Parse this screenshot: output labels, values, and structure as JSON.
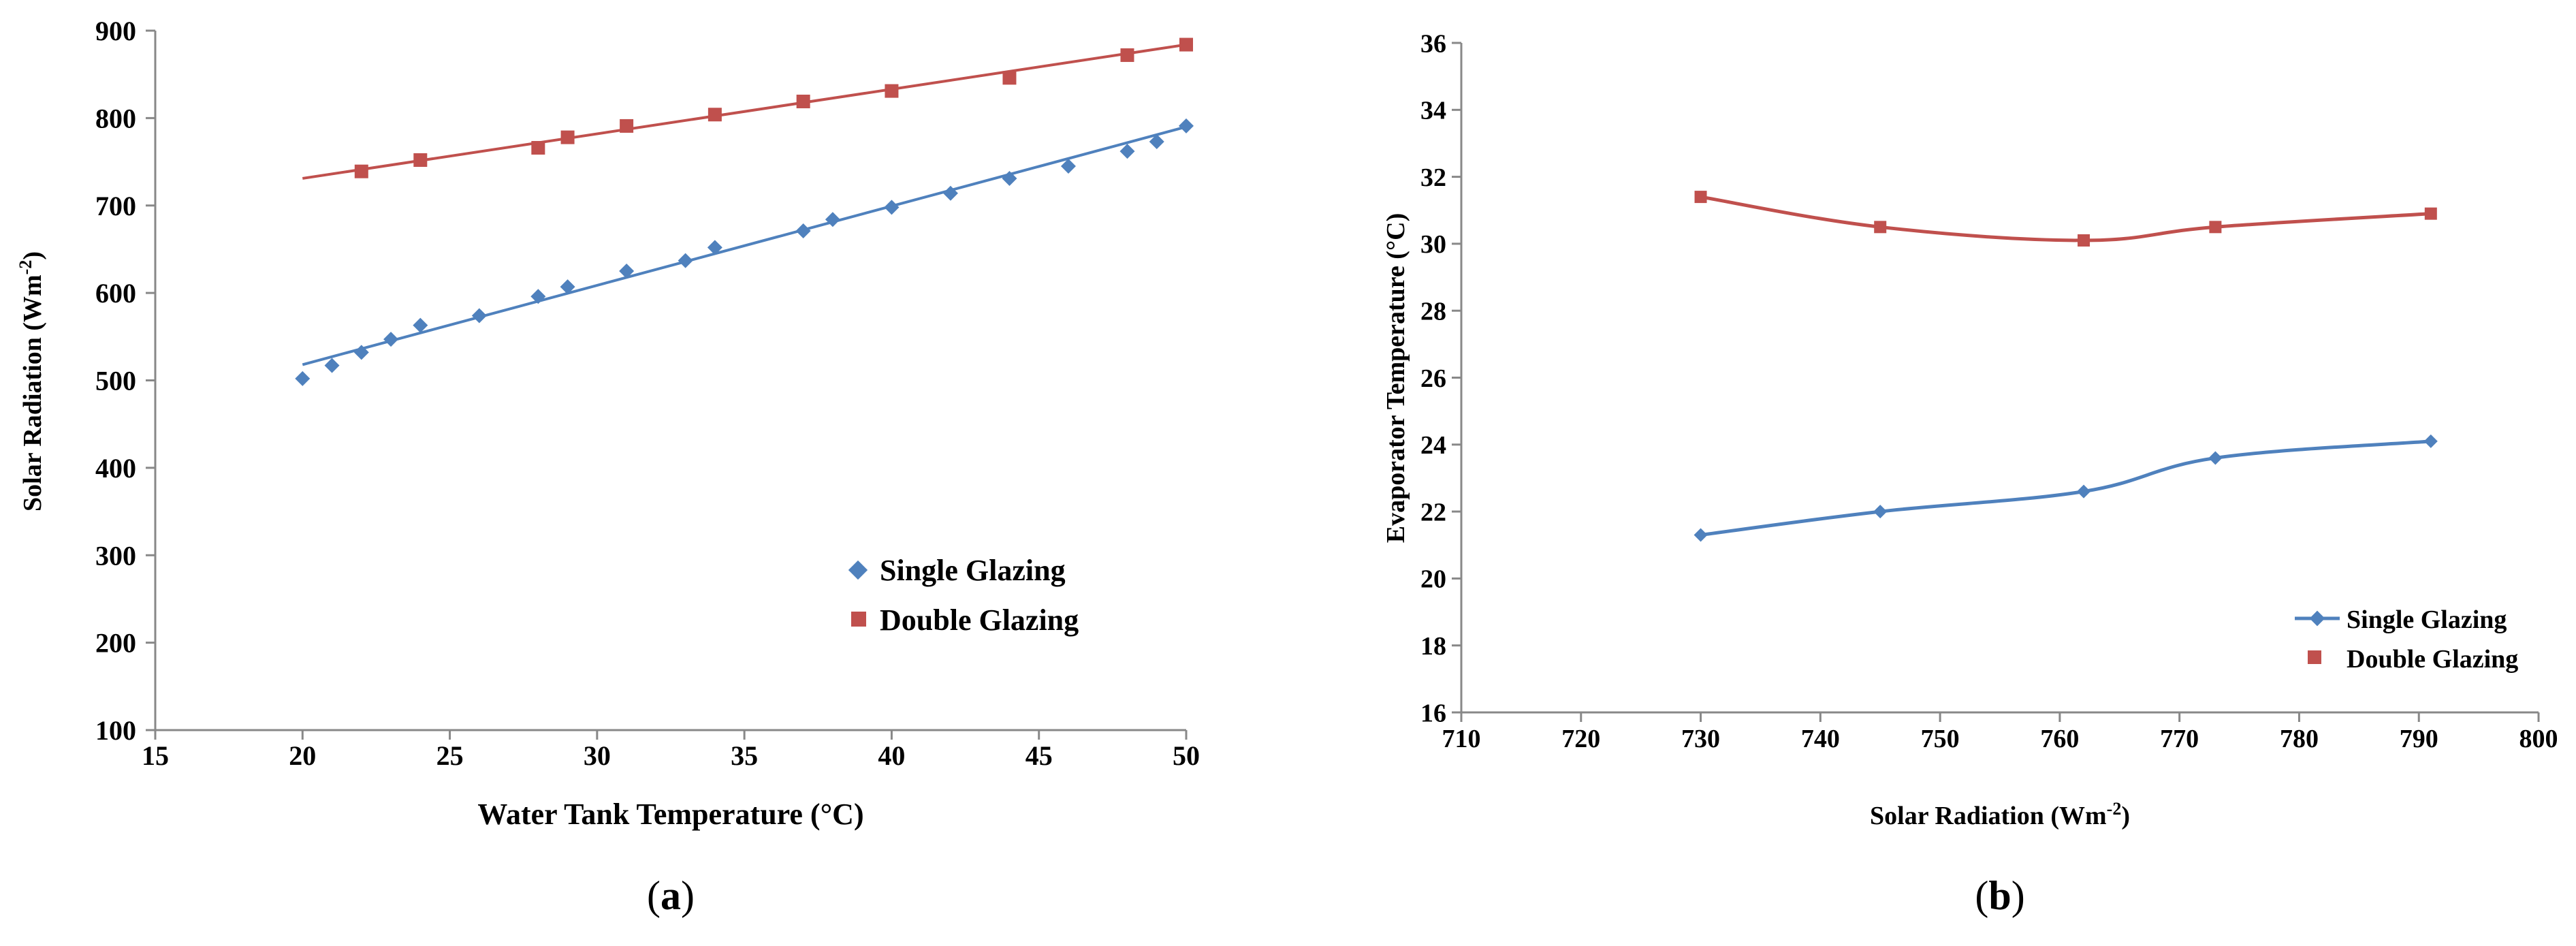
{
  "colors": {
    "single": "#4f81bd",
    "double": "#c0504d",
    "axis": "#888888",
    "text": "#000000"
  },
  "captions": {
    "a_open": "(",
    "a_letter": "a",
    "a_close": ")",
    "b_open": "(",
    "b_letter": "b",
    "b_close": ")"
  },
  "chart_data": [
    {
      "id": "a",
      "type": "scatter",
      "xlabel": "Water Tank Temperature (°C)",
      "ylabel_main": "Solar Radiation (Wm",
      "ylabel_sup": "-2",
      "ylabel_end": ")",
      "xlim": [
        15,
        50
      ],
      "ylim": [
        100,
        900
      ],
      "xticks": [
        15,
        20,
        25,
        30,
        35,
        40,
        45,
        50
      ],
      "yticks": [
        100,
        200,
        300,
        400,
        500,
        600,
        700,
        800,
        900
      ],
      "legend": [
        "Single Glazing",
        "Double Glazing"
      ],
      "legend_position": "bottom-right",
      "series": [
        {
          "name": "Single Glazing",
          "marker": "diamond",
          "x": [
            20,
            21,
            22,
            23,
            24,
            26,
            28,
            29,
            31,
            33,
            34,
            37,
            38,
            40,
            42,
            44,
            46,
            48,
            49,
            50
          ],
          "y": [
            502,
            517,
            532,
            547,
            563,
            574,
            596,
            607,
            625,
            637,
            652,
            671,
            684,
            698,
            714,
            731,
            745,
            762,
            773,
            791
          ],
          "trendline": [
            [
              20,
              518
            ],
            [
              50,
              790
            ]
          ]
        },
        {
          "name": "Double Glazing",
          "marker": "square",
          "x": [
            22,
            24,
            28,
            29,
            31,
            34,
            37,
            40,
            44,
            48,
            50
          ],
          "y": [
            739,
            752,
            766,
            778,
            791,
            804,
            819,
            831,
            846,
            872,
            884
          ],
          "trendline": [
            [
              20,
              731
            ],
            [
              50,
              884
            ]
          ]
        }
      ]
    },
    {
      "id": "b",
      "type": "line",
      "xlabel_main": "Solar Radiation (Wm",
      "xlabel_sup": "-2",
      "xlabel_end": ")",
      "ylabel": "Evaporator  Temperature (°C)",
      "xlim": [
        710,
        800
      ],
      "ylim": [
        16,
        36
      ],
      "xticks": [
        710,
        720,
        730,
        740,
        750,
        760,
        770,
        780,
        790,
        800
      ],
      "yticks": [
        16,
        18,
        20,
        22,
        24,
        26,
        28,
        30,
        32,
        34,
        36
      ],
      "legend": [
        "Single Glazing",
        "Double Glazing"
      ],
      "legend_position": "bottom-right",
      "series": [
        {
          "name": "Single Glazing",
          "marker": "diamond",
          "x": [
            730,
            745,
            762,
            773,
            791
          ],
          "y": [
            21.3,
            22.0,
            22.6,
            23.6,
            24.1
          ]
        },
        {
          "name": "Double Glazing",
          "marker": "square",
          "x": [
            730,
            745,
            762,
            773,
            791
          ],
          "y": [
            31.4,
            30.5,
            30.1,
            30.5,
            30.9
          ]
        }
      ]
    }
  ]
}
